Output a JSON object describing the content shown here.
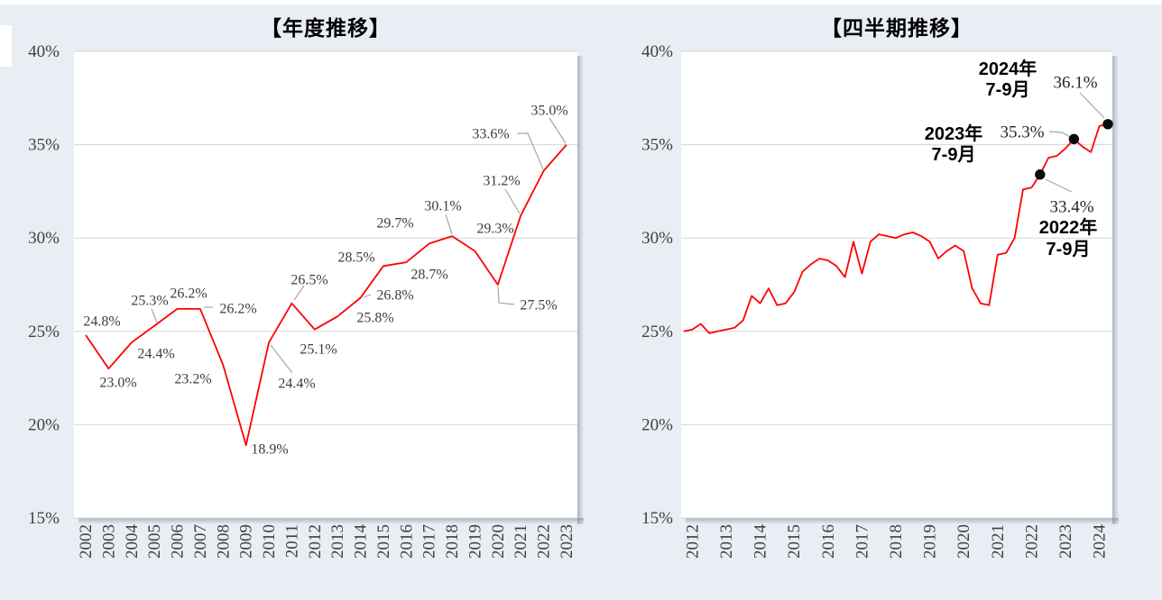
{
  "page": {
    "background_color": "#E9EDF4",
    "top_strip_color": "#FFFFFF"
  },
  "styles": {
    "line_color": "#FF0000",
    "grid_color": "#D6D6D6",
    "leader_color": "#A6A6A6",
    "axis_text_color": "#404040",
    "label_text_color": "#3D3D3D",
    "marker_color": "#0A0A0A",
    "plot_background": "#FFFFFF",
    "shadow_color": "#64707F"
  },
  "chart_data": [
    {
      "type": "line",
      "title": "【年度推移】",
      "xlabel": "",
      "ylabel": "",
      "ylim": [
        15,
        40
      ],
      "ytick_values": [
        40,
        35,
        30,
        25,
        20,
        15
      ],
      "ytick_labels": [
        "40%",
        "35%",
        "30%",
        "25%",
        "20%",
        "15%"
      ],
      "grid": true,
      "legend": "none",
      "categories": [
        "2002",
        "2003",
        "2004",
        "2005",
        "2006",
        "2007",
        "2008",
        "2009",
        "2010",
        "2011",
        "2012",
        "2013",
        "2014",
        "2015",
        "2016",
        "2017",
        "2018",
        "2019",
        "2020",
        "2021",
        "2022",
        "2023"
      ],
      "values": [
        24.8,
        23.0,
        24.4,
        25.3,
        26.2,
        26.2,
        23.2,
        18.9,
        24.4,
        26.5,
        25.1,
        25.8,
        26.8,
        28.5,
        28.7,
        29.7,
        30.1,
        29.3,
        27.5,
        31.2,
        33.6,
        35.0
      ],
      "data_labels": [
        "24.8%",
        "23.0%",
        "24.4%",
        "25.3%",
        "26.2%",
        "26.2%",
        "23.2%",
        "18.9%",
        "24.4%",
        "26.5%",
        "25.1%",
        "25.8%",
        "26.8%",
        "28.5%",
        "28.7%",
        "29.7%",
        "30.1%",
        "29.3%",
        "27.5%",
        "31.2%",
        "33.6%",
        "35.0%"
      ]
    },
    {
      "type": "line",
      "title": "【四半期推移】",
      "xlabel": "",
      "ylabel": "",
      "ylim": [
        15,
        40
      ],
      "ytick_values": [
        40,
        35,
        30,
        25,
        20,
        15
      ],
      "ytick_labels": [
        "40%",
        "35%",
        "30%",
        "25%",
        "20%",
        "15%"
      ],
      "grid": true,
      "legend": "none",
      "x_year_labels": [
        "2012",
        "2013",
        "2014",
        "2015",
        "2016",
        "2017",
        "2018",
        "2019",
        "2020",
        "2021",
        "2022",
        "2023",
        "2024"
      ],
      "quarters_per_year": 4,
      "values": [
        25.0,
        25.1,
        25.4,
        24.9,
        25.0,
        25.1,
        25.2,
        25.6,
        26.9,
        26.5,
        27.3,
        26.4,
        26.5,
        27.1,
        28.2,
        28.6,
        28.9,
        28.8,
        28.5,
        27.9,
        29.8,
        28.1,
        29.8,
        30.2,
        30.1,
        30.0,
        30.2,
        30.3,
        30.1,
        29.8,
        28.9,
        29.3,
        29.6,
        29.3,
        27.3,
        26.5,
        26.4,
        29.1,
        29.2,
        30.0,
        32.6,
        32.7,
        33.4,
        34.3,
        34.4,
        34.8,
        35.3,
        34.9,
        34.6,
        36.0,
        36.1
      ],
      "annotations": [
        {
          "line1": "2022年",
          "line2": "7-9月",
          "value_label": "33.4%",
          "value": 33.4,
          "point_index": 42
        },
        {
          "line1": "2023年",
          "line2": "7-9月",
          "value_label": "35.3%",
          "value": 35.3,
          "point_index": 46
        },
        {
          "line1": "2024年",
          "line2": "7-9月",
          "value_label": "36.1%",
          "value": 36.1,
          "point_index": 50
        }
      ]
    }
  ]
}
